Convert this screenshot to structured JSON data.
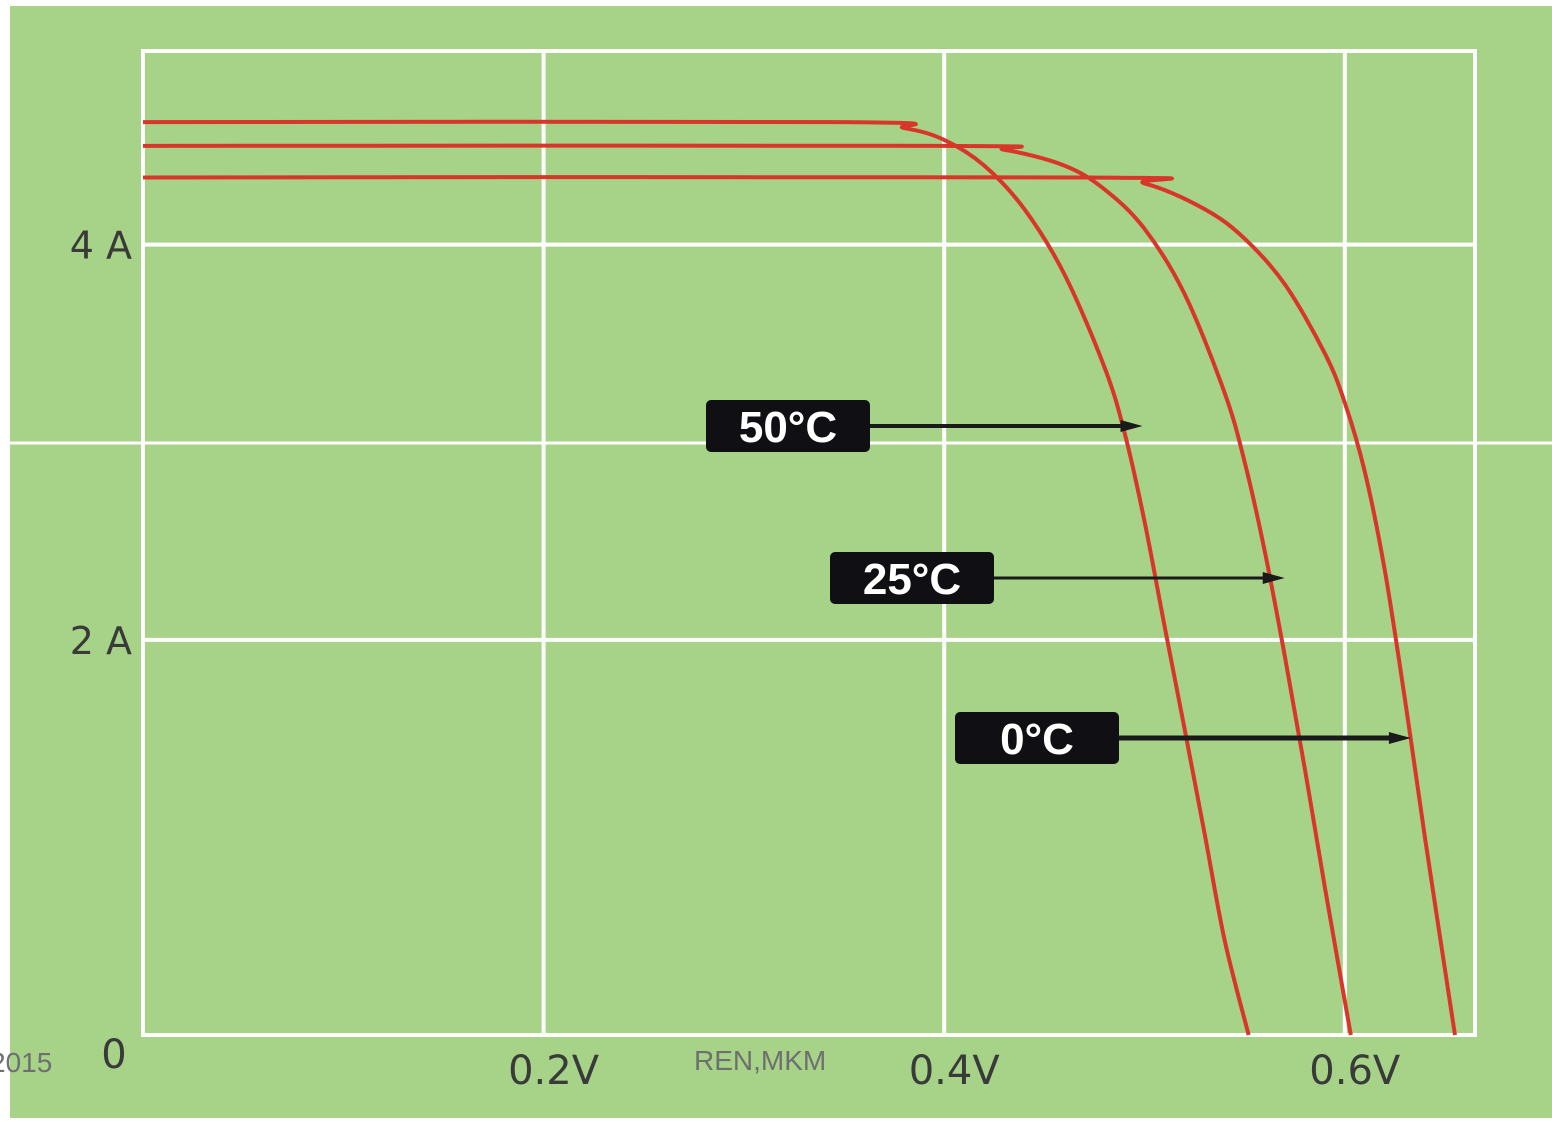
{
  "colors": {
    "background": "#a6d387",
    "grid": "#ffffff",
    "curve": "#d9362b",
    "label_box": "#0f0f14",
    "label_text": "#ffffff"
  },
  "footer": {
    "left_fragment": "2015",
    "center": "REN,MKM"
  },
  "chart_data": {
    "type": "line",
    "title": "",
    "xlabel": "",
    "ylabel": "",
    "xlim": [
      0,
      0.665
    ],
    "ylim": [
      0,
      4.98
    ],
    "grid": true,
    "x_tick_values": [
      0.2,
      0.4,
      0.6
    ],
    "x_tick_labels": [
      "0.2V",
      "0.4V",
      "0.6V"
    ],
    "y_tick_values": [
      2,
      4
    ],
    "y_tick_labels": [
      "2 A",
      "4 A"
    ],
    "origin_label": "0",
    "series": [
      {
        "name": "50°C",
        "x": [
          0.0,
          0.35,
          0.38,
          0.4,
          0.42,
          0.44,
          0.46,
          0.48,
          0.49,
          0.5,
          0.51,
          0.52,
          0.53,
          0.54,
          0.552
        ],
        "y": [
          4.62,
          4.62,
          4.59,
          4.53,
          4.4,
          4.18,
          3.85,
          3.38,
          3.05,
          2.6,
          2.07,
          1.55,
          1.02,
          0.48,
          0.0
        ]
      },
      {
        "name": "25°C",
        "x": [
          0.0,
          0.4,
          0.43,
          0.46,
          0.48,
          0.5,
          0.52,
          0.54,
          0.55,
          0.56,
          0.57,
          0.58,
          0.59,
          0.603
        ],
        "y": [
          4.5,
          4.5,
          4.48,
          4.4,
          4.28,
          4.08,
          3.75,
          3.25,
          2.9,
          2.45,
          1.92,
          1.35,
          0.75,
          0.0
        ]
      },
      {
        "name": "0°C",
        "x": [
          0.0,
          0.47,
          0.5,
          0.53,
          0.55,
          0.57,
          0.59,
          0.6,
          0.61,
          0.62,
          0.63,
          0.64,
          0.655
        ],
        "y": [
          4.34,
          4.34,
          4.31,
          4.18,
          4.03,
          3.8,
          3.45,
          3.2,
          2.85,
          2.35,
          1.7,
          1.0,
          0.0
        ]
      }
    ],
    "annotations": [
      {
        "text": "50°C",
        "arrow_to": [
          0.499,
          3.05
        ]
      },
      {
        "text": "25°C",
        "arrow_to": [
          0.57,
          2.27
        ]
      },
      {
        "text": "0°C",
        "arrow_to": [
          0.633,
          1.48
        ]
      }
    ]
  }
}
